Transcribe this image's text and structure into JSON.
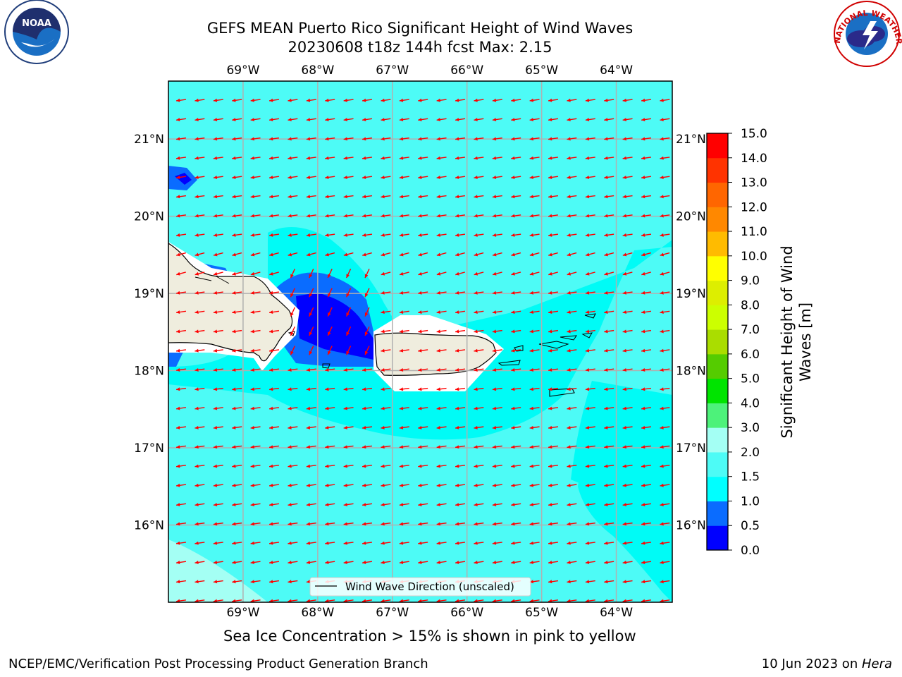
{
  "title": {
    "line1": "GEFS MEAN Puerto Rico Significant Height of Wind Waves",
    "line2": "20230608 t18z 144h fcst   Max: 2.15"
  },
  "map": {
    "lon_labels": [
      "69°W",
      "68°W",
      "67°W",
      "66°W",
      "65°W",
      "64°W"
    ],
    "lat_labels": [
      "21°N",
      "20°N",
      "19°N",
      "18°N",
      "17°N",
      "16°N"
    ],
    "lon_range": [
      -70.0,
      -63.25
    ],
    "lat_range": [
      15.0,
      21.75
    ],
    "legend_label": "Wind Wave Direction (unscaled)",
    "arrow_color": "#ff0000",
    "land_color": "#efedde"
  },
  "colorbar": {
    "label": "Significant Height of Wind Waves [m]",
    "label_line1": "Significant Height of Wind",
    "label_line2": "Waves [m]",
    "ticks": [
      "0.0",
      "0.5",
      "1.0",
      "1.5",
      "2.0",
      "3.0",
      "4.0",
      "5.0",
      "6.0",
      "7.0",
      "8.0",
      "9.0",
      "10.0",
      "11.0",
      "12.0",
      "13.0",
      "14.0",
      "15.0"
    ],
    "colors": [
      "#0000ff",
      "#0a6cff",
      "#00ffff",
      "#4dfbf6",
      "#a4fff4",
      "#4df27a",
      "#00e400",
      "#55cc00",
      "#aadd00",
      "#ccff00",
      "#ddee00",
      "#ffff00",
      "#ffbb00",
      "#ff8800",
      "#ff6600",
      "#ff3300",
      "#ff0000"
    ]
  },
  "note": "Sea Ice Concentration > 15% is shown in pink to yellow",
  "footer": {
    "left": "NCEP/EMC/Verification Post Processing Product Generation Branch",
    "date": "10 Jun 2023 on ",
    "machine": "Hera"
  },
  "logos": {
    "noaa_text": "NOAA",
    "nws_text": "NATIONAL WEATHER SERVICE"
  }
}
